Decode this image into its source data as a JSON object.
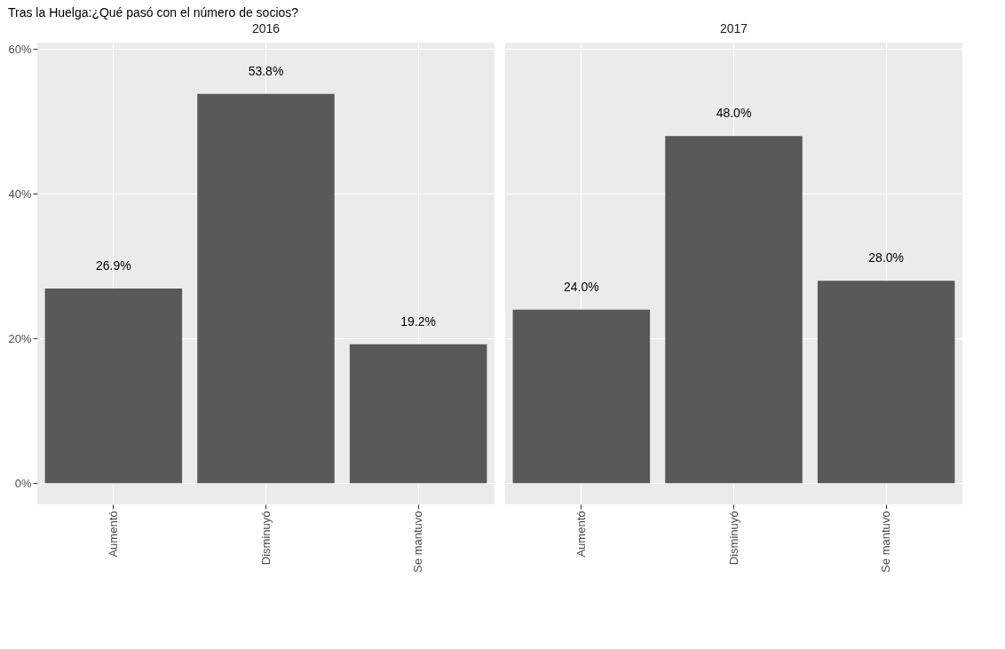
{
  "chart_data": [
    {
      "type": "bar",
      "title": "Tras la Huelga:¿Qué pasó con el número de socios?",
      "subtitle": "2016",
      "categories": [
        "Aumentó",
        "Disminuyó",
        "Se mantuvo"
      ],
      "values": [
        26.9,
        53.8,
        19.2
      ],
      "value_labels": [
        "26.9%",
        "53.8%",
        "19.2%"
      ],
      "color": "#595959",
      "ylim": [
        -2.9,
        60.9
      ],
      "yticks": [
        {
          "value": 0,
          "label": "0%"
        },
        {
          "value": 20,
          "label": "20%"
        },
        {
          "value": 40,
          "label": "40%"
        },
        {
          "value": 60,
          "label": "60%"
        }
      ],
      "grid": true
    },
    {
      "type": "bar",
      "subtitle": "2017",
      "categories": [
        "Aumentó",
        "Disminuyó",
        "Se mantuvo"
      ],
      "values": [
        24.0,
        48.0,
        28.0
      ],
      "value_labels": [
        "24.0%",
        "48.0%",
        "28.0%"
      ],
      "color": "#595959",
      "ylim": [
        -2.9,
        60.9
      ],
      "yticks": [
        0,
        20,
        40,
        60
      ],
      "grid": true,
      "tick_labels": "x"
    }
  ]
}
